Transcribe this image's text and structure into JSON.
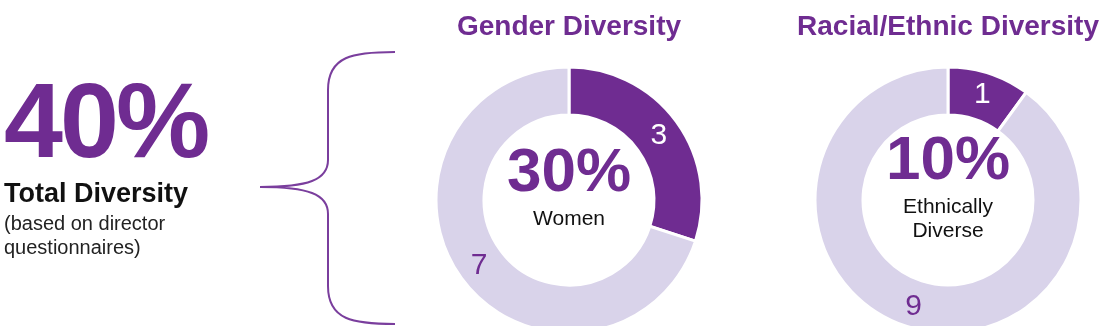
{
  "chart_data": [
    {
      "type": "other",
      "annotations": [
        "40%",
        "Total Diversity",
        "(based on director questionnaires)"
      ]
    },
    {
      "type": "donut",
      "title": "Gender Diversity",
      "categories": [
        null,
        null
      ],
      "values": [
        3,
        7
      ],
      "colors": [
        "#6f2c91",
        "#d9d3ea"
      ],
      "data_labels": true,
      "legend": false,
      "annotations": [
        "30%",
        "Women"
      ]
    },
    {
      "type": "donut",
      "title": "Racial/Ethnic Diversity",
      "categories": [
        null,
        null
      ],
      "values": [
        1,
        9
      ],
      "colors": [
        "#6f2c91",
        "#d9d3ea"
      ],
      "data_labels": true,
      "legend": false,
      "annotations": [
        "10%",
        "Ethnically Diverse"
      ]
    }
  ]
}
